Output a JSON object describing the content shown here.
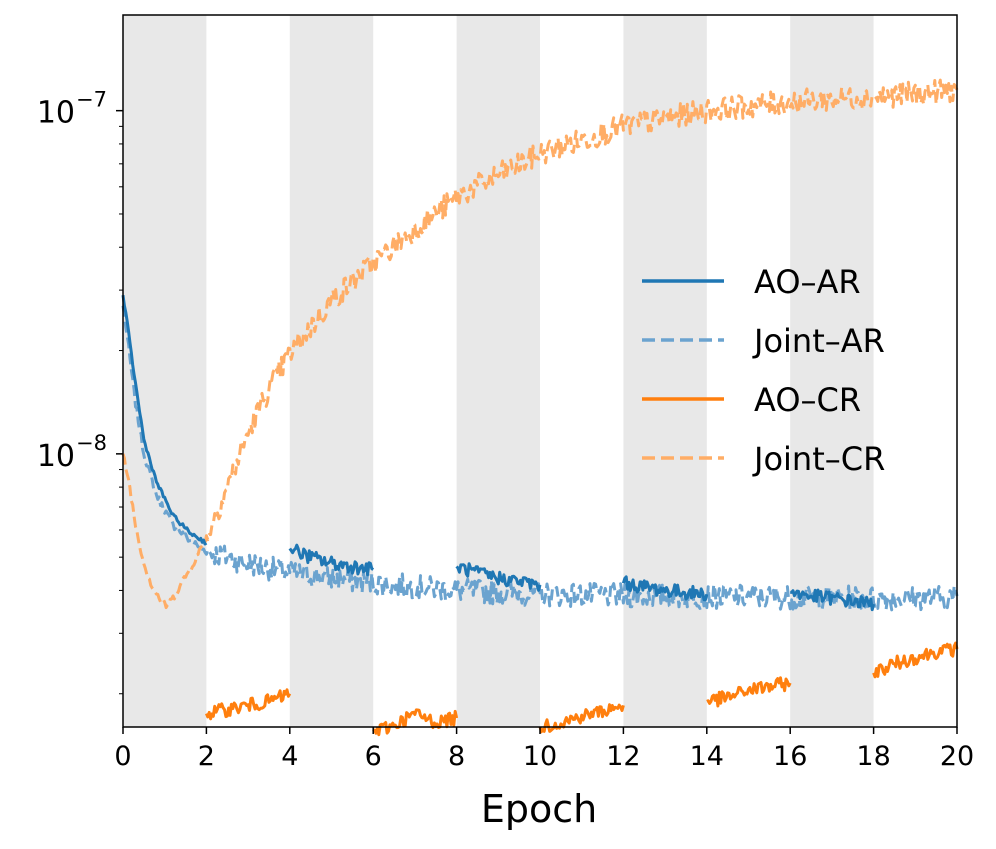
{
  "chart_data": {
    "type": "line",
    "title": "",
    "xlabel": "Epoch",
    "ylabel": "",
    "xlim": [
      0,
      20
    ],
    "ylim": [
      1.6e-09,
      1.9e-07
    ],
    "yscale": "log",
    "x_ticks": [
      "0",
      "2",
      "4",
      "6",
      "8",
      "10",
      "12",
      "14",
      "16",
      "18",
      "20"
    ],
    "y_ticks": [
      {
        "base": "10",
        "exponent": "−8",
        "value": 1e-08
      },
      {
        "base": "10",
        "exponent": "−7",
        "value": 1e-07
      }
    ],
    "shaded_epoch_bands": [
      [
        0,
        2
      ],
      [
        4,
        6
      ],
      [
        8,
        10
      ],
      [
        12,
        14
      ],
      [
        16,
        18
      ]
    ],
    "legend_position": "center-right",
    "series": [
      {
        "name": "AO–AR",
        "color": "#1f77b4",
        "style": "solid",
        "segments": [
          {
            "x": [
              0,
              0.1,
              0.3,
              0.5,
              0.8,
              1.2,
              1.6,
              2.0
            ],
            "y": [
              2.9e-08,
              2.4e-08,
              1.6e-08,
              1.1e-08,
              8.3e-09,
              6.6e-09,
              5.9e-09,
              5.5e-09
            ]
          },
          {
            "x": [
              4,
              4.5,
              5,
              5.5,
              6
            ],
            "y": [
              5.3e-09,
              5e-09,
              4.8e-09,
              4.7e-09,
              4.6e-09
            ]
          },
          {
            "x": [
              8,
              8.5,
              9,
              9.5,
              10
            ],
            "y": [
              4.7e-09,
              4.5e-09,
              4.35e-09,
              4.25e-09,
              4.15e-09
            ]
          },
          {
            "x": [
              12,
              12.5,
              13,
              13.5,
              14
            ],
            "y": [
              4.2e-09,
              4.1e-09,
              4e-09,
              3.95e-09,
              3.9e-09
            ]
          },
          {
            "x": [
              16,
              16.5,
              17,
              17.5,
              18
            ],
            "y": [
              3.95e-09,
              3.85e-09,
              3.8e-09,
              3.72e-09,
              3.65e-09
            ]
          }
        ]
      },
      {
        "name": "Joint–AR",
        "color": "#6ba3cf",
        "style": "dashed",
        "segments": [
          {
            "x": [
              0,
              0.1,
              0.3,
              0.5,
              0.8,
              1.2,
              1.6,
              2,
              3,
              4,
              5,
              6,
              7,
              8,
              9,
              10,
              11,
              12,
              13,
              14,
              15,
              16,
              17,
              18,
              19,
              20
            ],
            "y": [
              2.7e-08,
              2.2e-08,
              1.4e-08,
              1e-08,
              7.6e-09,
              6.2e-09,
              5.6e-09,
              5.2e-09,
              4.8e-09,
              4.5e-09,
              4.35e-09,
              4.2e-09,
              4.1e-09,
              4e-09,
              3.95e-09,
              3.9e-09,
              3.88e-09,
              3.86e-09,
              3.85e-09,
              3.84e-09,
              3.83e-09,
              3.82e-09,
              3.81e-09,
              3.8e-09,
              3.8e-09,
              3.85e-09
            ]
          }
        ]
      },
      {
        "name": "AO–CR",
        "color": "#ff7f0e",
        "style": "solid",
        "segments": [
          {
            "x": [
              2,
              2.5,
              3,
              3.5,
              4
            ],
            "y": [
              1.75e-09,
              1.8e-09,
              1.85e-09,
              1.9e-09,
              2e-09
            ]
          },
          {
            "x": [
              6,
              6.5,
              7,
              7.5,
              8
            ],
            "y": [
              1.55e-09,
              1.62e-09,
              1.75e-09,
              1.65e-09,
              1.7e-09
            ]
          },
          {
            "x": [
              10,
              10.5,
              11,
              11.5,
              12
            ],
            "y": [
              1.6e-09,
              1.65e-09,
              1.72e-09,
              1.78e-09,
              1.85e-09
            ]
          },
          {
            "x": [
              14,
              14.5,
              15,
              15.5,
              16
            ],
            "y": [
              1.9e-09,
              1.95e-09,
              2.05e-09,
              2.1e-09,
              2.15e-09
            ]
          },
          {
            "x": [
              18,
              18.5,
              19,
              19.5,
              20
            ],
            "y": [
              2.3e-09,
              2.45e-09,
              2.55e-09,
              2.65e-09,
              2.7e-09
            ]
          }
        ]
      },
      {
        "name": "Joint–CR",
        "color": "#ffad66",
        "style": "dashed",
        "segments": [
          {
            "x": [
              0,
              0.15,
              0.3,
              0.5,
              0.7,
              0.9,
              1.05,
              1.2,
              1.4,
              1.6,
              1.8,
              2,
              2.5,
              3,
              3.5,
              4,
              5,
              6,
              7,
              8,
              9,
              10,
              11,
              12,
              13,
              14,
              15,
              16,
              17,
              18,
              19,
              20
            ],
            "y": [
              1e-08,
              8.2e-09,
              6.2e-09,
              4.8e-09,
              4.1e-09,
              3.75e-09,
              3.6e-09,
              3.8e-09,
              4.2e-09,
              4.6e-09,
              5.1e-09,
              5.7e-09,
              8e-09,
              1.15e-08,
              1.55e-08,
              1.95e-08,
              2.8e-08,
              3.6e-08,
              4.5e-08,
              5.6e-08,
              6.5e-08,
              7.5e-08,
              8.2e-08,
              9e-08,
              9.5e-08,
              1e-07,
              1.03e-07,
              1.06e-07,
              1.08e-07,
              1.1e-07,
              1.12e-07,
              1.15e-07
            ]
          }
        ]
      }
    ]
  }
}
